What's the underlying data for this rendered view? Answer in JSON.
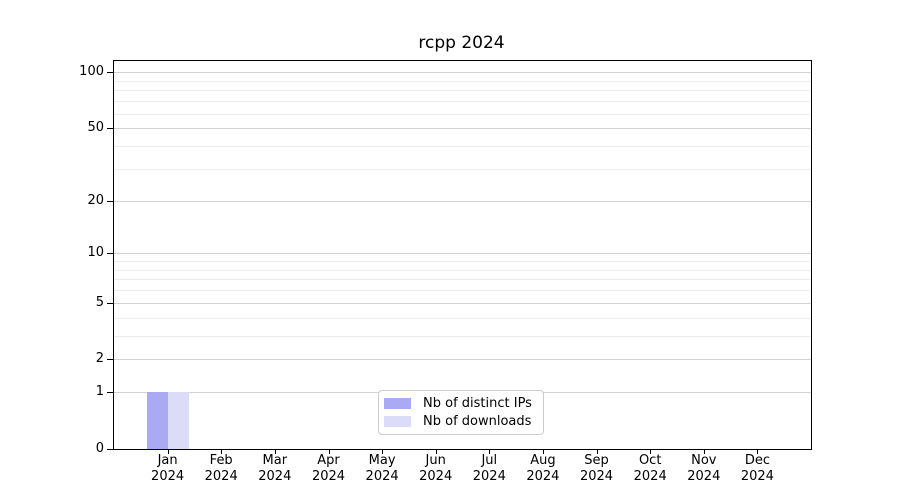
{
  "figure": {
    "background": "#ffffff"
  },
  "chart_data": {
    "type": "bar",
    "title": "rcpp 2024",
    "categories": [
      "Jan",
      "Feb",
      "Mar",
      "Apr",
      "May",
      "Jun",
      "Jul",
      "Aug",
      "Sep",
      "Oct",
      "Nov",
      "Dec"
    ],
    "category_year": "2024",
    "series": [
      {
        "name": "Nb of distinct IPs",
        "color": "#a9a9f4",
        "values": [
          1,
          0,
          0,
          0,
          0,
          0,
          0,
          0,
          0,
          0,
          0,
          0
        ]
      },
      {
        "name": "Nb of downloads",
        "color": "#dcdcf8",
        "values": [
          1,
          0,
          0,
          0,
          0,
          0,
          0,
          0,
          0,
          0,
          0,
          0
        ]
      }
    ],
    "y_scale": "log1p",
    "ylim": [
      0,
      115
    ],
    "y_major_ticks": [
      0,
      1,
      2,
      5,
      10,
      20,
      50,
      100
    ],
    "y_minor_gridlines": [
      3,
      4,
      6,
      7,
      8,
      9,
      30,
      40,
      60,
      70,
      80,
      90
    ],
    "grid": "both",
    "legend_position": "lower center",
    "colors": {
      "major_grid": "#d2d2d2",
      "minor_grid": "#ededed",
      "spine": "#000000",
      "text": "#000000"
    }
  }
}
